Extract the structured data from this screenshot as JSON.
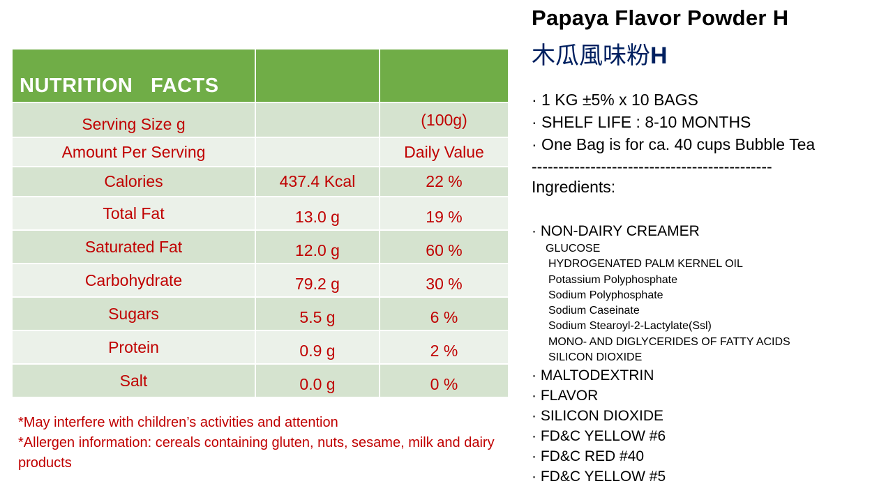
{
  "nutrition_table": {
    "title": "NUTRITION   FACTS",
    "serving_size_label": "Serving Size g",
    "serving_size_value": "(100g)",
    "amount_per_serving_label": "Amount Per Serving",
    "daily_value_label": "Daily Value",
    "rows": [
      {
        "name": "Calories",
        "amount": "437.4 Kcal",
        "dv": "22 %"
      },
      {
        "name": "Total Fat",
        "amount": "13.0 g",
        "dv": "19 %"
      },
      {
        "name": "Saturated Fat",
        "amount": "12.0 g",
        "dv": "60 %"
      },
      {
        "name": "Carbohydrate",
        "amount": "79.2 g",
        "dv": "30 %"
      },
      {
        "name": "Sugars",
        "amount": "5.5 g",
        "dv": "6 %"
      },
      {
        "name": "Protein",
        "amount": "0.9 g",
        "dv": "2 %"
      },
      {
        "name": "Salt",
        "amount": "0.0 g",
        "dv": "0 %"
      }
    ]
  },
  "footnotes": [
    "*May interfere with children’s activities and attention",
    "*Allergen information: cereals containing gluten, nuts, sesame, milk and dairy products"
  ],
  "product": {
    "title": "Papaya Flavor Powder H",
    "title_cn": "木瓜風味粉",
    "title_cn_suffix": "H",
    "specs": [
      "· 1 KG ±5% x 10 BAGS",
      "· SHELF LIFE : 8-10 MONTHS",
      "· One Bag is for ca. 40 cups Bubble Tea",
      "---------------------------------------------"
    ],
    "ingredients_label": "Ingredients:",
    "ingredients_main_1": "· NON-DAIRY CREAMER",
    "ingredients_sub": [
      "GLUCOSE",
      "HYDROGENATED PALM KERNEL OIL",
      "Potassium Polyphosphate",
      "Sodium Polyphosphate",
      "Sodium Caseinate",
      "Sodium Stearoyl-2-Lactylate(Ssl)",
      "MONO- AND DIGLYCERIDES OF FATTY ACIDS",
      "SILICON DIOXIDE"
    ],
    "ingredients_main_rest": [
      "· MALTODEXTRIN",
      "· FLAVOR",
      "· SILICON DIOXIDE",
      "· FD&C YELLOW #6",
      "· FD&C RED #40",
      "· FD&C YELLOW #5"
    ]
  },
  "colors": {
    "header_green": "#70ad47",
    "row_dark": "#d5e3cf",
    "row_light": "#ebf1e9",
    "text_red": "#c00000",
    "cn_title_blue": "#002060"
  }
}
